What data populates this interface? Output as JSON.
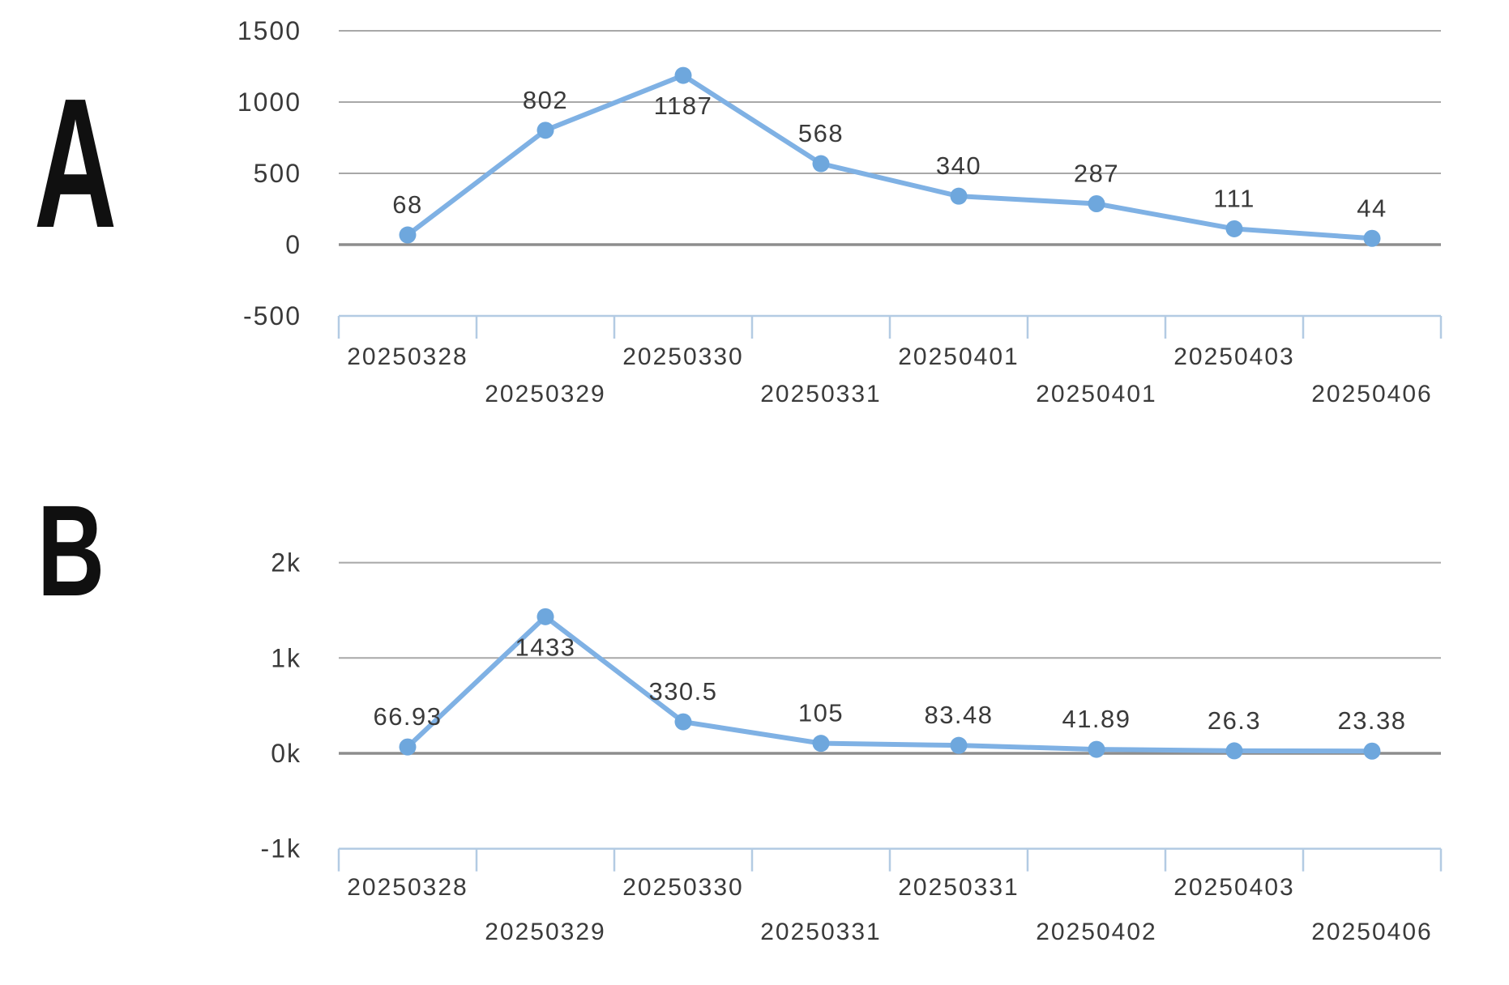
{
  "figure": {
    "panel_a_label": "A",
    "panel_b_label": "B"
  },
  "colors": {
    "series_line": "#7fb1e4",
    "series_marker": "#6ea7dd",
    "gridline": "#a8a8a8",
    "zero_gridline": "#8d8d8d",
    "axis_line": "#b3cbe3",
    "label_text": "#3a3a3a",
    "panel_letter": "#101010",
    "background": "#ffffff"
  },
  "chart_data": [
    {
      "type": "line",
      "panel": "A",
      "title": "",
      "xlabel": "",
      "ylabel": "",
      "categories": [
        "20250328",
        "20250329",
        "20250330",
        "20250331",
        "20250401",
        "20250401",
        "20250403",
        "20250406"
      ],
      "values": [
        68,
        802,
        1187,
        568,
        340,
        287,
        111,
        44
      ],
      "point_labels": [
        "68",
        "802",
        "1187",
        "568",
        "340",
        "287",
        "111",
        "44"
      ],
      "y_tick_labels": [
        "1500",
        "1000",
        "500",
        "0",
        "-500"
      ],
      "y_tick_values": [
        1500,
        1000,
        500,
        0,
        -500
      ],
      "ylim": [
        -500,
        1500
      ],
      "grid": true,
      "legend_position": "none",
      "x_label_rows": {
        "row1": [
          "20250328",
          "20250330",
          "20250401",
          "20250403"
        ],
        "row2": [
          "20250329",
          "20250331",
          "20250401",
          "20250406"
        ]
      }
    },
    {
      "type": "line",
      "panel": "B",
      "title": "",
      "xlabel": "",
      "ylabel": "",
      "categories": [
        "20250328",
        "20250329",
        "20250330",
        "20250331",
        "20250331",
        "20250402",
        "20250403",
        "20250406"
      ],
      "values": [
        66.93,
        1433,
        330.5,
        105,
        83.48,
        41.89,
        26.3,
        23.38
      ],
      "point_labels": [
        "66.93",
        "1433",
        "330.5",
        "105",
        "83.48",
        "41.89",
        "26.3",
        "23.38"
      ],
      "y_tick_labels": [
        "2k",
        "1k",
        "0k",
        "-1k"
      ],
      "y_tick_values": [
        2000,
        1000,
        0,
        -1000
      ],
      "ylim": [
        -1000,
        2000
      ],
      "grid": true,
      "legend_position": "none",
      "x_label_rows": {
        "row1": [
          "20250328",
          "20250330",
          "20250331",
          "20250403"
        ],
        "row2": [
          "20250329",
          "20250331",
          "20250402",
          "20250406"
        ]
      }
    }
  ]
}
